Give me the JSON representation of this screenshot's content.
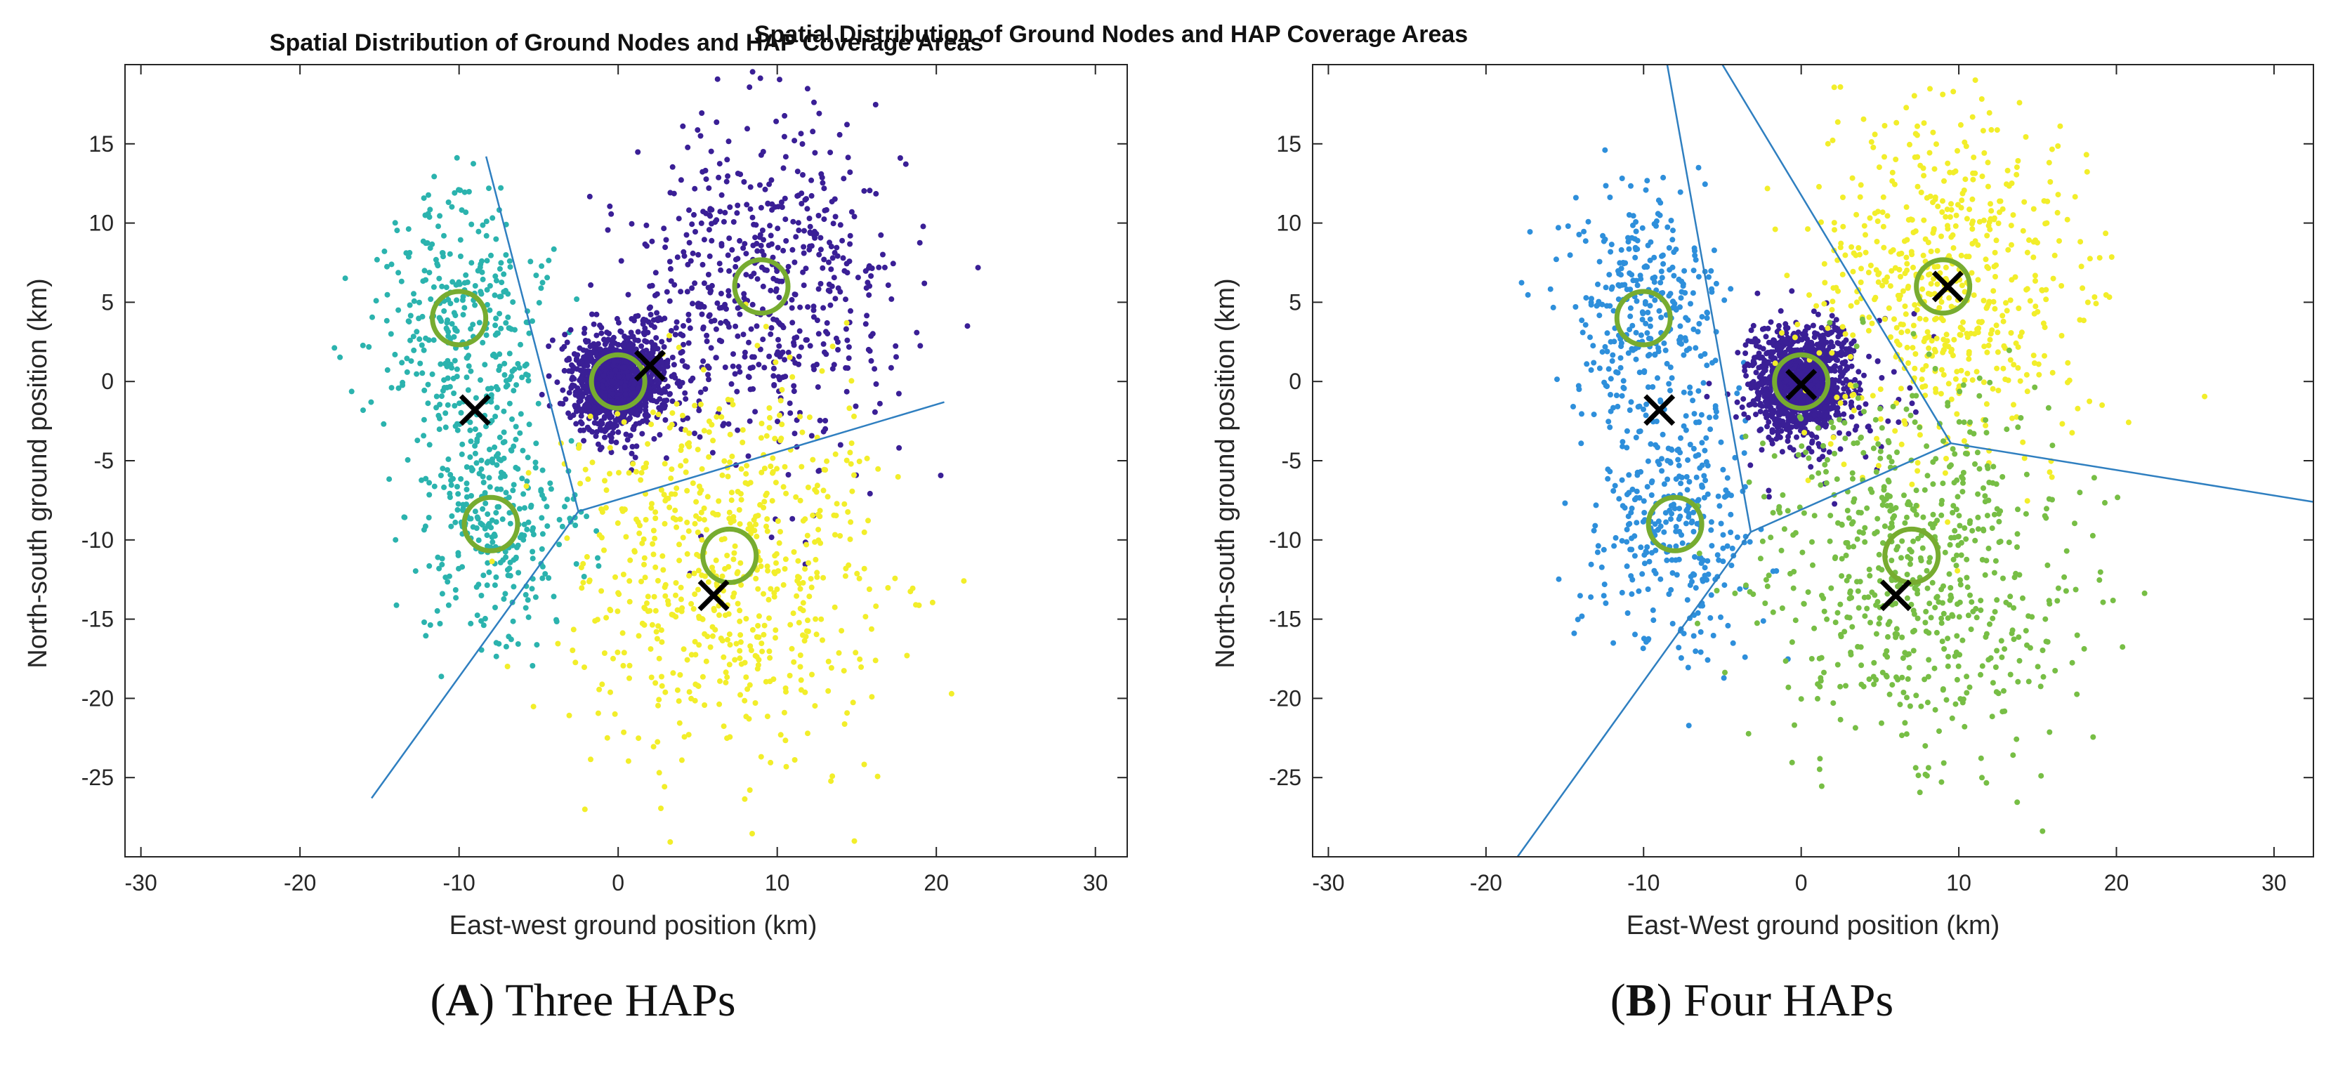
{
  "figure": {
    "captions": [
      {
        "letter": "A",
        "text": "Three HAPs"
      },
      {
        "letter": "B",
        "text": "Four HAPs"
      }
    ]
  },
  "chart_data": [
    {
      "type": "scatter",
      "title": "Spatial Distribution of Ground Nodes and HAP Coverage Areas",
      "xlabel": "East-west ground position (km)",
      "ylabel": "North-south ground position (km)",
      "xlim": [
        -31,
        32
      ],
      "ylim": [
        -30,
        20
      ],
      "xticks": [
        -30,
        -20,
        -10,
        0,
        10,
        20,
        30
      ],
      "yticks": [
        -25,
        -20,
        -15,
        -10,
        -5,
        0,
        5,
        10,
        15
      ],
      "grid": false,
      "clusters": [
        {
          "name": "cluster-west",
          "color": "#2BB3AE",
          "centers": [
            [
              -10,
              4
            ],
            [
              -8,
              -9
            ]
          ],
          "spread": [
            2.6,
            4.2
          ],
          "count": 650
        },
        {
          "name": "cluster-center-dense",
          "color": "#3A1F96",
          "centers": [
            [
              0,
              0
            ]
          ],
          "spread": [
            1.5,
            1.6
          ],
          "count": 1200
        },
        {
          "name": "cluster-northeast",
          "color": "#3A1F96",
          "centers": [
            [
              9,
              6
            ]
          ],
          "spread": [
            4.2,
            5.3
          ],
          "count": 600
        },
        {
          "name": "cluster-south",
          "color": "#F2EE2A",
          "centers": [
            [
              7,
              -12
            ]
          ],
          "spread": [
            5.0,
            6.0
          ],
          "count": 650
        }
      ],
      "user_centers": [
        [
          -10,
          4
        ],
        [
          -8,
          -9
        ],
        [
          0,
          0
        ],
        [
          9,
          6
        ],
        [
          7,
          -11
        ]
      ],
      "hap_positions": [
        [
          -9,
          -1.8
        ],
        [
          2,
          1
        ],
        [
          6,
          -13.5
        ]
      ],
      "boundaries": [
        [
          [
            -8.3,
            14.2
          ],
          [
            -2.5,
            -8.2
          ]
        ],
        [
          [
            -2.5,
            -8.2
          ],
          [
            20.5,
            -1.3
          ]
        ],
        [
          [
            -2.5,
            -8.2
          ],
          [
            -15.5,
            -26.3
          ]
        ]
      ],
      "colors": {
        "circle": "#77AC30",
        "hap_marker": "#000000",
        "boundary": "#2F7FC0"
      }
    },
    {
      "type": "scatter",
      "title": "Spatial Distribution of Ground Nodes and HAP Coverage Areas",
      "xlabel": "East-West ground position (km)",
      "ylabel": "North-south ground position (km)",
      "xlim": [
        -31,
        32.5
      ],
      "ylim": [
        -30,
        20
      ],
      "xticks": [
        -30,
        -20,
        -10,
        0,
        10,
        20,
        30
      ],
      "yticks": [
        -25,
        -20,
        -15,
        -10,
        -5,
        0,
        5,
        10,
        15
      ],
      "grid": false,
      "clusters": [
        {
          "name": "cluster-west",
          "color": "#2E8FDB",
          "centers": [
            [
              -10,
              4
            ],
            [
              -8,
              -9
            ]
          ],
          "spread": [
            2.6,
            4.2
          ],
          "count": 650
        },
        {
          "name": "cluster-center-dense",
          "color": "#3A1F96",
          "centers": [
            [
              0,
              0
            ]
          ],
          "spread": [
            1.5,
            1.6
          ],
          "count": 1200
        },
        {
          "name": "cluster-center-sparse",
          "color": "#3A1F96",
          "centers": [
            [
              1,
              -1
            ]
          ],
          "spread": [
            3.0,
            3.0
          ],
          "count": 110
        },
        {
          "name": "cluster-northeast",
          "color": "#F2EE2A",
          "centers": [
            [
              9,
              6
            ]
          ],
          "spread": [
            4.2,
            5.3
          ],
          "count": 600
        },
        {
          "name": "cluster-south",
          "color": "#77BE45",
          "centers": [
            [
              7,
              -12
            ]
          ],
          "spread": [
            5.0,
            6.0
          ],
          "count": 650
        }
      ],
      "user_centers": [
        [
          -10,
          4
        ],
        [
          -8,
          -9
        ],
        [
          0,
          0
        ],
        [
          9,
          6
        ],
        [
          7,
          -11
        ]
      ],
      "hap_positions": [
        [
          -9,
          -1.8
        ],
        [
          0,
          -0.2
        ],
        [
          9.3,
          6
        ],
        [
          6,
          -13.5
        ]
      ],
      "boundaries": [
        [
          [
            -8.5,
            20
          ],
          [
            -3.2,
            -9.5
          ]
        ],
        [
          [
            -3.2,
            -9.5
          ],
          [
            -18,
            -30
          ]
        ],
        [
          [
            -3.2,
            -9.5
          ],
          [
            9.5,
            -3.9
          ]
        ],
        [
          [
            9.5,
            -3.9
          ],
          [
            -5,
            20
          ]
        ],
        [
          [
            9.5,
            -3.9
          ],
          [
            32.5,
            -7.6
          ]
        ]
      ],
      "colors": {
        "circle": "#77AC30",
        "hap_marker": "#000000",
        "boundary": "#2F7FC0"
      }
    }
  ]
}
